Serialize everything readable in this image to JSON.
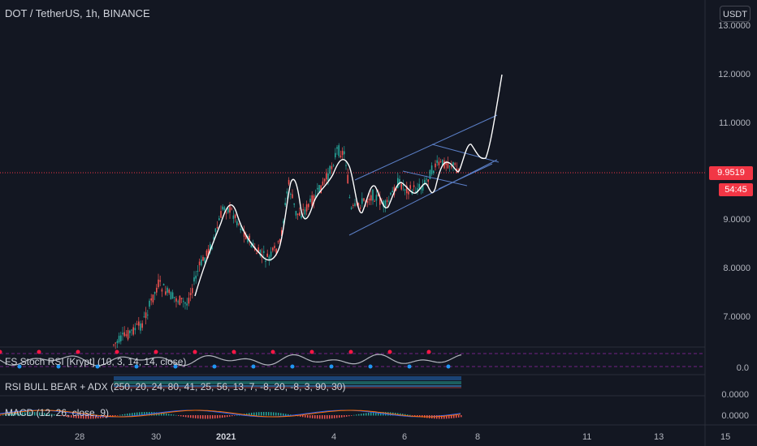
{
  "header": {
    "title": "DOT / TetherUS, 1h, BINANCE",
    "currency": "USDT"
  },
  "price_axis": [
    "13.0000",
    "12.0000",
    "11.0000",
    "9.0000",
    "8.0000",
    "7.0000"
  ],
  "current_price": "9.9519",
  "countdown": "54:45",
  "indicators": {
    "stoch": {
      "label": "FS Stoch RSI [Krypt] (10, 3, 14, 14, close)",
      "value": "0.0"
    },
    "rsi": {
      "label": "RSI BULL BEAR + ADX (250, 20, 24, 80, 41, 25, 56, 13, 7, -8, 20, -8, 3, 90, 30)",
      "value": "0.0000"
    },
    "macd": {
      "label": "MACD (12, 26, close, 9)",
      "value": "0.0000"
    }
  },
  "dates": [
    "28",
    "30",
    "2021",
    "4",
    "6",
    "8",
    "11",
    "13",
    "15"
  ],
  "colors": {
    "up": "#26a69a",
    "down": "#ef5350",
    "accent": "#f23645",
    "channel": "#5b7fc7",
    "background": "#131722"
  }
}
